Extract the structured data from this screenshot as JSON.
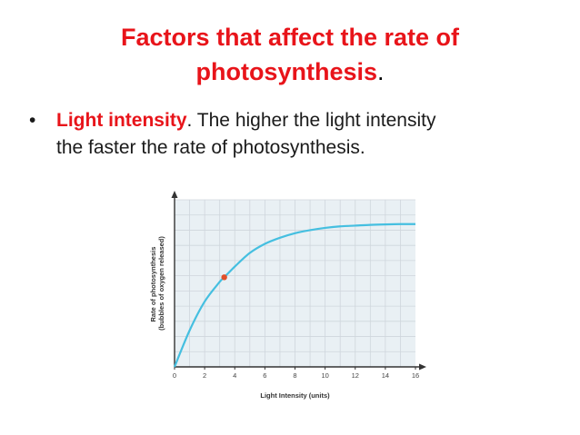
{
  "slide": {
    "title_line1": "Factors that affect the rate of",
    "title_line2": "photosynthesis",
    "title_period": ".",
    "bullet_mark": "•",
    "bullet_term": "Light intensity",
    "bullet_period": ".",
    "bullet_text_line1": " The higher the light intensity",
    "bullet_text_line2": "the faster the rate of photosynthesis."
  },
  "colors": {
    "accent": "#e8141a",
    "curve": "#45bfe0",
    "marker": "#e0502a",
    "grid": "#cfd6dc",
    "plot_bg": "#e9f0f4"
  },
  "chart_data": {
    "type": "line",
    "title": "",
    "xlabel": "Light Intensity (units)",
    "ylabel_line1": "Rate of photosynthesis",
    "ylabel_line2": "(bubbles of oxygen released)",
    "xlim": [
      0,
      16
    ],
    "x_ticks": [
      0,
      2,
      4,
      6,
      8,
      10,
      12,
      14,
      16
    ],
    "x_tick_labels": [
      "0",
      "2",
      "4",
      "6",
      "8",
      "10",
      "12",
      "14",
      "16"
    ],
    "ylim": [
      0,
      11
    ],
    "grid": true,
    "series": [
      {
        "x": [
          0,
          1,
          2,
          3,
          3.3,
          4,
          5,
          6,
          7,
          8,
          9,
          10,
          11,
          12,
          13,
          14,
          15,
          16
        ],
        "y": [
          0,
          2.4,
          4.3,
          5.6,
          5.9,
          6.6,
          7.5,
          8.1,
          8.5,
          8.8,
          9.0,
          9.15,
          9.25,
          9.3,
          9.35,
          9.38,
          9.4,
          9.4
        ]
      }
    ],
    "highlight_point": {
      "x": 3.3,
      "y": 5.9
    }
  }
}
